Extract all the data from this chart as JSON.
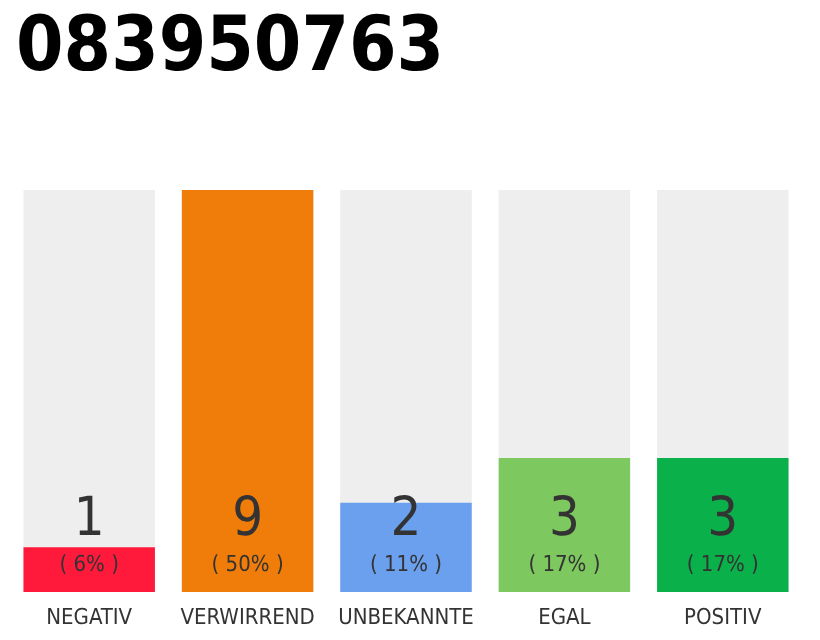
{
  "chart_data": {
    "type": "bar",
    "title": "083950763",
    "categories": [
      "NEGATIV",
      "VERWIRREND",
      "UNBEKANNTE",
      "EGAL",
      "POSITIV"
    ],
    "values": [
      1,
      9,
      2,
      3,
      3
    ],
    "colors": [
      "#ff1a3c",
      "#f07d0a",
      "#6aa0ee",
      "#7ec860",
      "#0ab04a"
    ],
    "data_labels": true,
    "annotations": [
      "( 6% )",
      "( 50% )",
      "( 11% )",
      "( 17% )",
      "( 17% )"
    ]
  }
}
